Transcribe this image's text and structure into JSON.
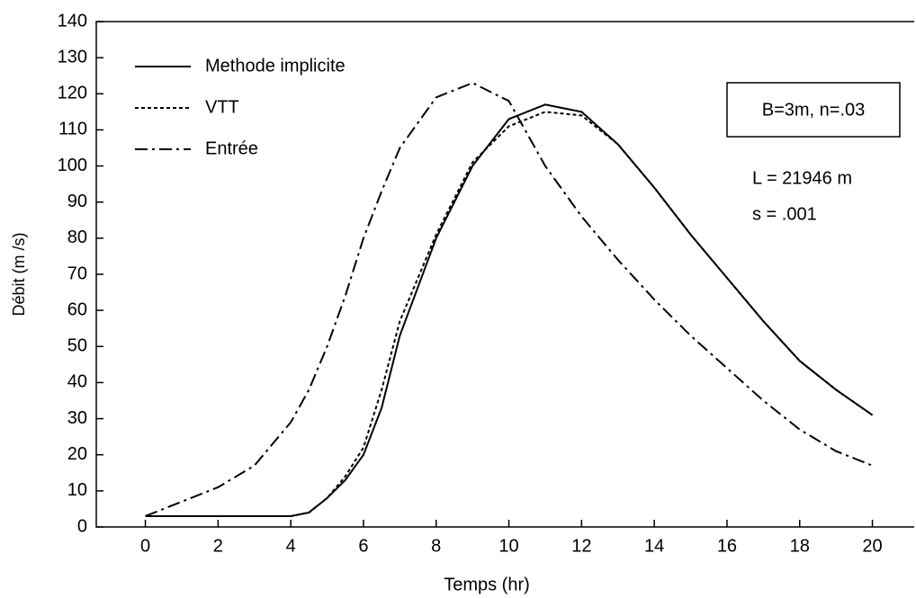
{
  "chart_data": {
    "type": "line",
    "xlabel": "Temps (hr)",
    "ylabel": "Débit (m /s)",
    "x": [
      0,
      1,
      2,
      3,
      4,
      4.5,
      5,
      5.5,
      6,
      6.5,
      7,
      8,
      9,
      10,
      11,
      12,
      13,
      14,
      15,
      16,
      17,
      18,
      19,
      20
    ],
    "series": [
      {
        "name": "Methode implicite",
        "color": "#000000",
        "values": [
          3,
          3,
          3,
          3,
          3,
          4,
          8,
          13,
          20,
          33,
          53,
          80,
          100,
          113,
          117,
          115,
          106,
          94,
          81,
          69,
          57,
          46,
          38,
          31
        ]
      },
      {
        "name": "VTT",
        "color": "#000000",
        "values": [
          3,
          3,
          3,
          3,
          3,
          4,
          8,
          14,
          22,
          38,
          57,
          81,
          101,
          111,
          115,
          114,
          106,
          94,
          81,
          69,
          57,
          46,
          38,
          31
        ]
      },
      {
        "name": "Entrée",
        "color": "#000000",
        "values": [
          3,
          7,
          11,
          17,
          29,
          38,
          50,
          64,
          80,
          93,
          105,
          119,
          123,
          118,
          100,
          86,
          74,
          63,
          53,
          44,
          35,
          27,
          21,
          17
        ]
      }
    ],
    "annotations": [
      "B=3m, n=.03",
      "L = 21946 m",
      "s = .001"
    ],
    "xlim": [
      -1.35,
      21.15
    ],
    "xticks": [
      0,
      2,
      4,
      6,
      8,
      10,
      12,
      14,
      16,
      18,
      20
    ],
    "ylim": [
      0,
      140
    ],
    "yticks": [
      0,
      10,
      20,
      30,
      40,
      50,
      60,
      70,
      80,
      90,
      100,
      110,
      120,
      130,
      140
    ],
    "grid": false
  }
}
